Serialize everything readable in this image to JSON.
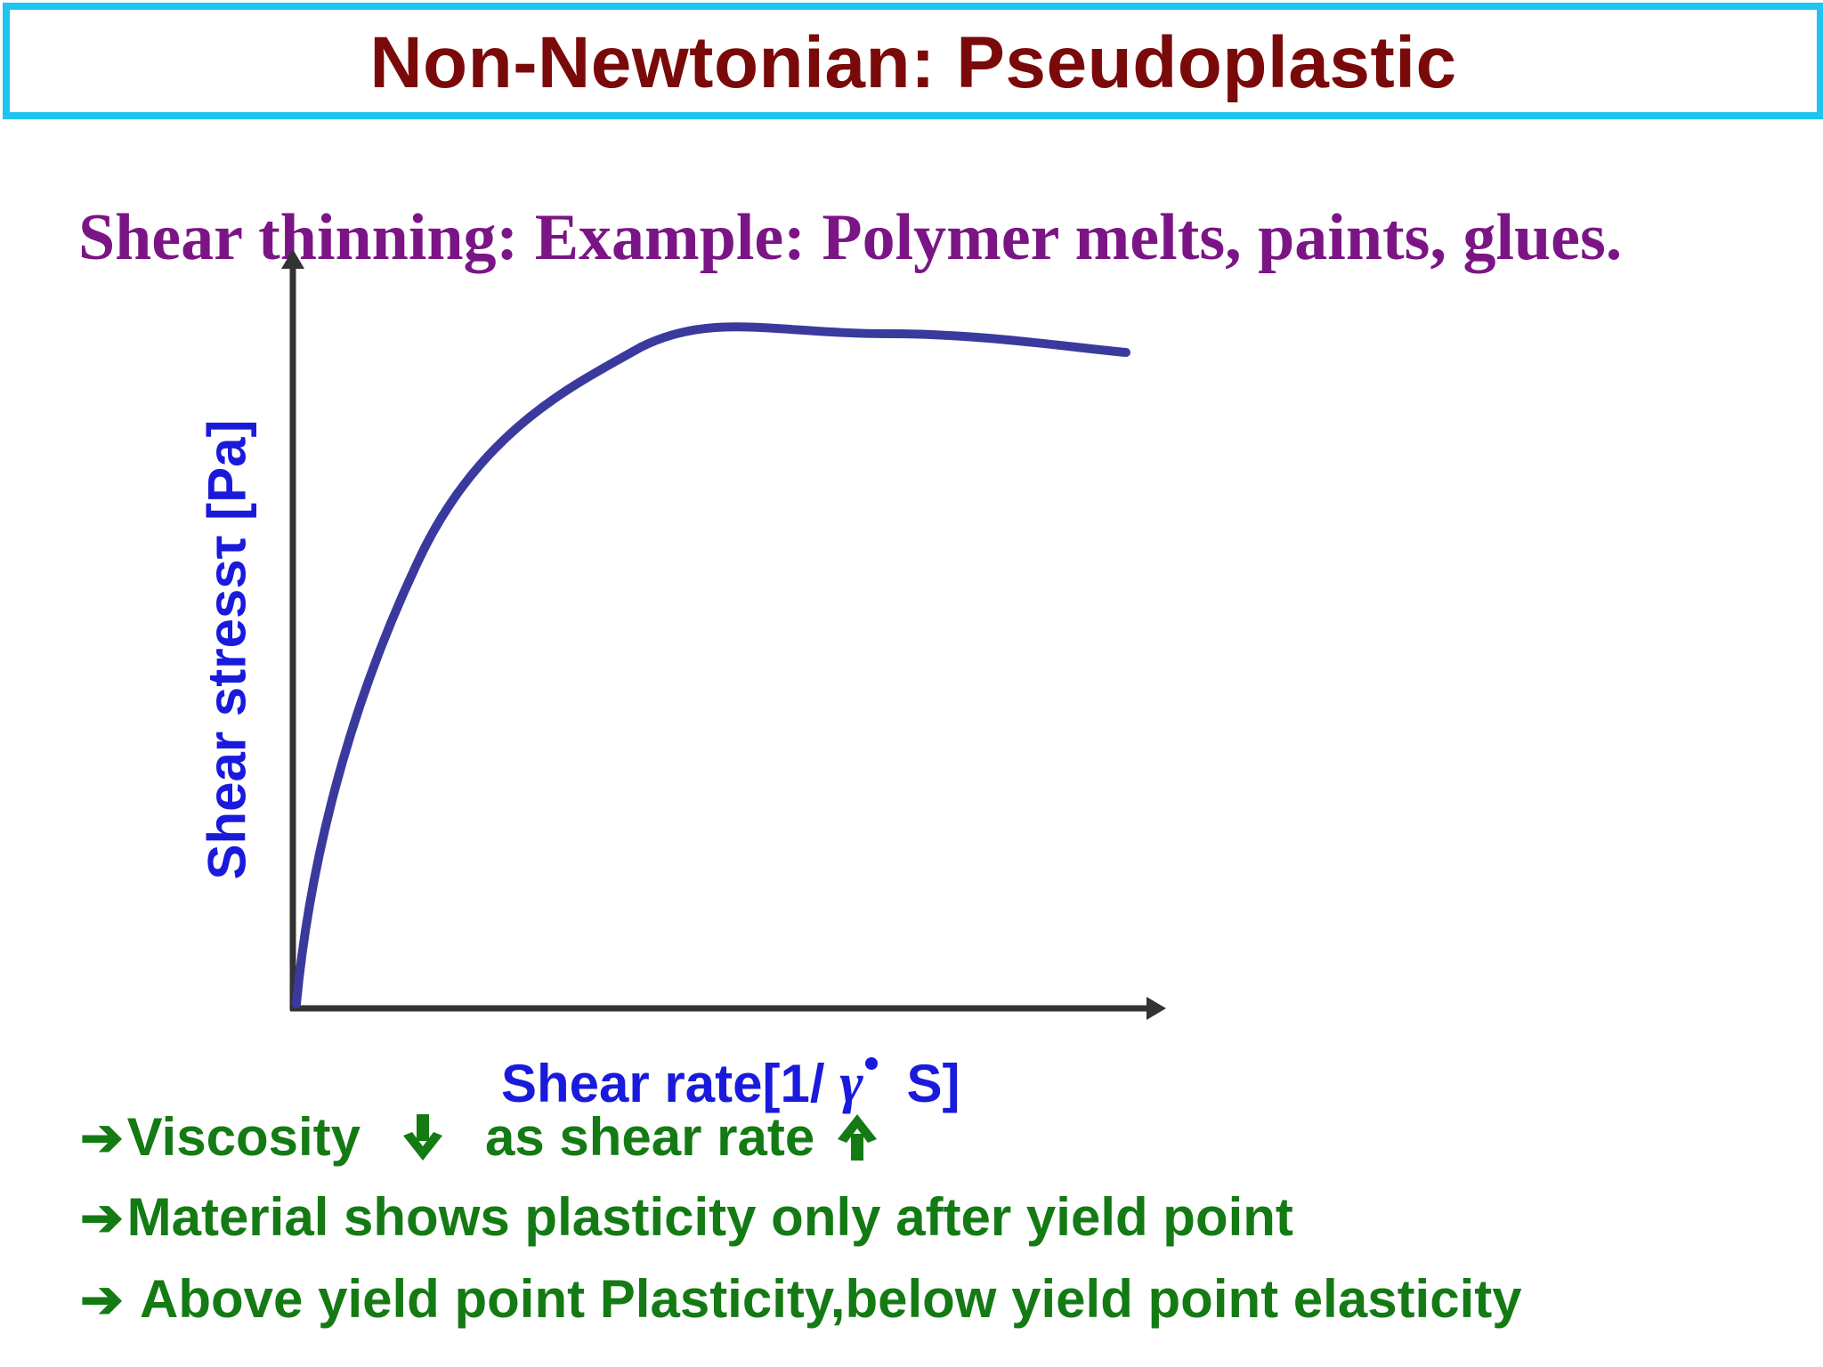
{
  "title": "Non-Newtonian: Pseudoplastic",
  "subtitle": "Shear thinning: Example: Polymer melts, paints, glues.",
  "axes": {
    "y_label": "Shear stressτ [Pa]",
    "x_label_prefix": "Shear rate[1/ ",
    "x_label_symbol": "γ",
    "x_label_suffix": " S]"
  },
  "curve": {
    "type": "line",
    "description_shape": "shear-thinning",
    "color": "#3a3a9e"
  },
  "bullets": {
    "arrow_glyph": "➔",
    "b1_part1": "Viscosity",
    "b1_part2": "as shear rate",
    "b2": "Material shows plasticity only after yield point",
    "b3": " Above yield point Plasticity,below yield point elasticity"
  },
  "colors": {
    "title": "#7a0a0a",
    "title_border": "#1fc4ef",
    "subtitle": "#7b1585",
    "axis_label": "#1a1adc",
    "bullet": "#147a14"
  }
}
